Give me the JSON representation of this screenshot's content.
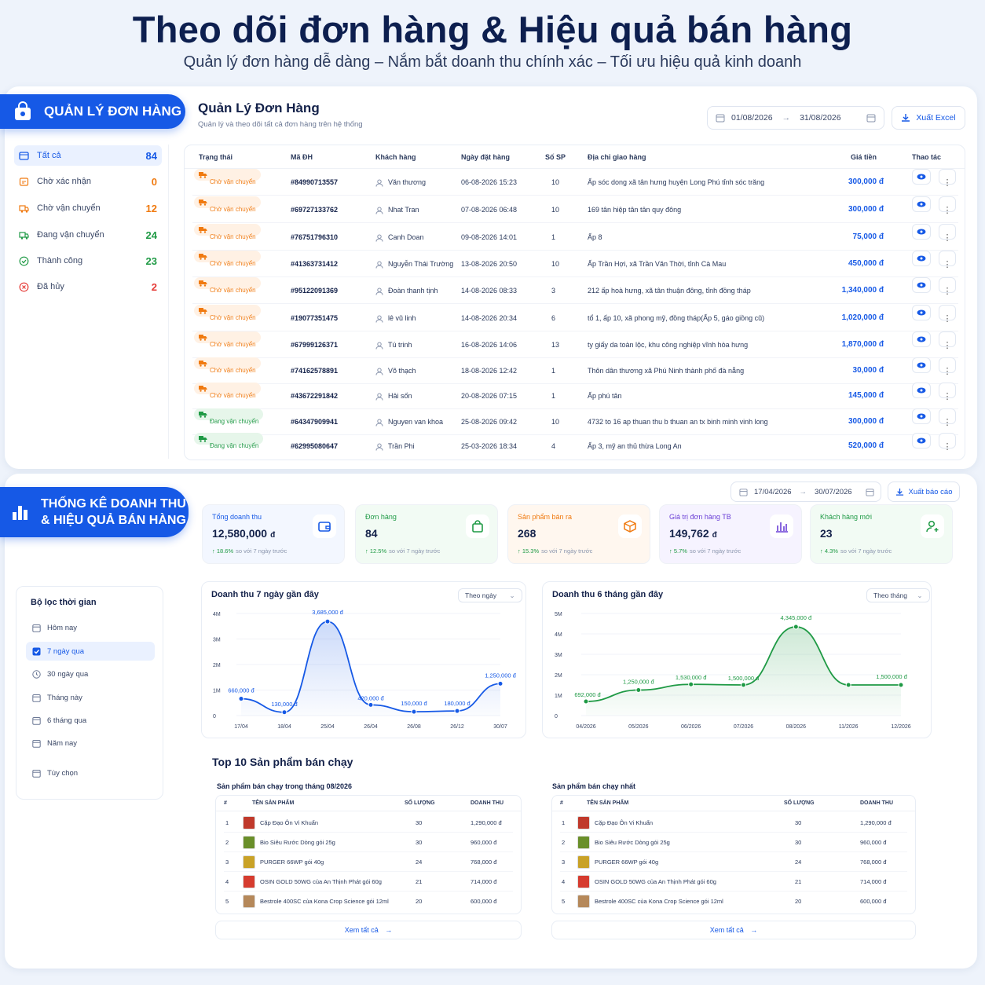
{
  "hero": {
    "title": "Theo dõi đơn hàng & Hiệu quả bán hàng",
    "subtitle": "Quản lý đơn hàng dễ dàng – Nắm bắt doanh thu chính xác – Tối ưu hiệu quả kinh doanh"
  },
  "orders": {
    "ribbon": "QUẢN LÝ ĐƠN HÀNG",
    "title": "Quản Lý Đơn Hàng",
    "subtitle": "Quản lý và theo dõi tất cả đơn hàng trên hệ thống",
    "date_from": "01/08/2026",
    "date_to": "31/08/2026",
    "export_label": "Xuất Excel",
    "nav": [
      {
        "label": "Tất cả",
        "count": "84",
        "color": "#1659e6",
        "icon": "list-icon"
      },
      {
        "label": "Chờ xác nhận",
        "count": "0",
        "color": "#f07a10",
        "icon": "pending-icon"
      },
      {
        "label": "Chờ vận chuyển",
        "count": "12",
        "color": "#f07a10",
        "icon": "truck-icon"
      },
      {
        "label": "Đang vận chuyển",
        "count": "24",
        "color": "#1f9a45",
        "icon": "truck-icon"
      },
      {
        "label": "Thành công",
        "count": "23",
        "color": "#1f9a45",
        "icon": "check-icon"
      },
      {
        "label": "Đã hủy",
        "count": "2",
        "color": "#e53935",
        "icon": "cancel-icon"
      }
    ],
    "columns": [
      "Trạng thái",
      "Mã ĐH",
      "Khách hàng",
      "Ngày đặt hàng",
      "Số SP",
      "Địa chỉ giao hàng",
      "Giá tiền",
      "Thao tác"
    ],
    "rows": [
      {
        "status": "Chờ vận chuyển",
        "kind": "o",
        "id": "#84990713557",
        "customer": "Văn thương",
        "date": "06-08-2026 15:23",
        "qty": "10",
        "address": "Ấp sóc dong xã tân hưng huyện Long Phú tỉnh sóc trăng",
        "price": "300,000 đ"
      },
      {
        "status": "Chờ vận chuyển",
        "kind": "o",
        "id": "#69727133762",
        "customer": "Nhat Tran",
        "date": "07-08-2026 06:48",
        "qty": "10",
        "address": "169 tân hiệp tân tân quy đông",
        "price": "300,000 đ"
      },
      {
        "status": "Chờ vận chuyển",
        "kind": "o",
        "id": "#76751796310",
        "customer": "Canh Doan",
        "date": "09-08-2026 14:01",
        "qty": "1",
        "address": "Ấp 8",
        "price": "75,000 đ"
      },
      {
        "status": "Chờ vận chuyển",
        "kind": "o",
        "id": "#41363731412",
        "customer": "Nguyễn Thái Trường",
        "date": "13-08-2026 20:50",
        "qty": "10",
        "address": "Ấp Trần Hợi, xã Trần Văn Thời, tỉnh Cà Mau",
        "price": "450,000 đ"
      },
      {
        "status": "Chờ vận chuyển",
        "kind": "o",
        "id": "#95122091369",
        "customer": "Đoàn thanh tịnh",
        "date": "14-08-2026 08:33",
        "qty": "3",
        "address": "212 ấp hoà hưng, xã tân thuận đông, tỉnh đồng tháp",
        "price": "1,340,000 đ"
      },
      {
        "status": "Chờ vận chuyển",
        "kind": "o",
        "id": "#19077351475",
        "customer": "lê vũ linh",
        "date": "14-08-2026 20:34",
        "qty": "6",
        "address": "tổ 1, ấp 10, xã phong mỹ, đồng tháp(Ấp 5, gáo giồng cũ)",
        "price": "1,020,000 đ"
      },
      {
        "status": "Chờ vận chuyển",
        "kind": "o",
        "id": "#67999126371",
        "customer": "Tú trinh",
        "date": "16-08-2026 14:06",
        "qty": "13",
        "address": "ty giấy da toàn lộc, khu công nghiệp vĩnh hòa hưng",
        "price": "1,870,000 đ"
      },
      {
        "status": "Chờ vận chuyển",
        "kind": "o",
        "id": "#74162578891",
        "customer": "Võ thạch",
        "date": "18-08-2026 12:42",
        "qty": "1",
        "address": "Thôn dân thương xã Phú Ninh thành phố đà nẵng",
        "price": "30,000 đ"
      },
      {
        "status": "Chờ vận chuyển",
        "kind": "o",
        "id": "#43672291842",
        "customer": "Hải sốn",
        "date": "20-08-2026 07:15",
        "qty": "1",
        "address": "Ấp phú tân",
        "price": "145,000 đ"
      },
      {
        "status": "Đang vận chuyển",
        "kind": "g",
        "id": "#64347909941",
        "customer": "Nguyen van khoa",
        "date": "25-08-2026 09:42",
        "qty": "10",
        "address": "4732 to 16 ap thuan thu b thuan an tx binh minh vinh long",
        "price": "300,000 đ"
      },
      {
        "status": "Đang vận chuyển",
        "kind": "g",
        "id": "#62995080647",
        "customer": "Trần Phi",
        "date": "25-03-2026 18:34",
        "qty": "4",
        "address": "Ấp 3, mỹ an thủ thừa Long An",
        "price": "520,000 đ"
      }
    ]
  },
  "stats": {
    "ribbon_line1": "THỐNG KÊ DOANH THU",
    "ribbon_line2": "& HIỆU QUẢ BÁN HÀNG",
    "date_from": "17/04/2026",
    "date_to": "30/07/2026",
    "export_label": "Xuất báo cáo",
    "kpis": [
      {
        "label": "Tổng doanh thu",
        "value": "12,580,000",
        "unit": "đ",
        "change": "18.6%",
        "note": "so với 7 ngày trước",
        "color": "#1659e6",
        "bg": "#f3f7ff",
        "icon": "wallet-icon"
      },
      {
        "label": "Đơn hàng",
        "value": "84",
        "unit": "",
        "change": "12.5%",
        "note": "so với 7 ngày trước",
        "color": "#1f9a45",
        "bg": "#f2fbf4",
        "icon": "bag-icon"
      },
      {
        "label": "Sản phẩm bán ra",
        "value": "268",
        "unit": "",
        "change": "15.3%",
        "note": "so với 7 ngày trước",
        "color": "#f07a10",
        "bg": "#fff7ef",
        "icon": "box-icon"
      },
      {
        "label": "Giá trị đơn hàng TB",
        "value": "149,762",
        "unit": "đ",
        "change": "5.7%",
        "note": "so với 7 ngày trước",
        "color": "#6a3fd6",
        "bg": "#f6f3ff",
        "icon": "bar-icon"
      },
      {
        "label": "Khách hàng mới",
        "value": "23",
        "unit": "",
        "change": "4.3%",
        "note": "so với 7 ngày trước",
        "color": "#1f9a45",
        "bg": "#f2fbf4",
        "icon": "user-plus-icon"
      }
    ],
    "filter_title": "Bộ lọc thời gian",
    "filters": [
      "Hôm nay",
      "7 ngày qua",
      "30 ngày qua",
      "Tháng này",
      "6 tháng qua",
      "Năm nay",
      "Tùy chọn"
    ],
    "chart1_select": "Theo ngày",
    "chart2_select": "Theo tháng",
    "top_title": "Top 10 Sản phẩm bán chạy",
    "table1_title": "Sản phẩm bán chạy trong tháng 08/2026",
    "table2_title": "Sản phẩm bán chạy nhất",
    "columns": [
      "#",
      "TÊN SẢN PHẨM",
      "SỐ LƯỢNG",
      "DOANH THU"
    ],
    "products": [
      {
        "rank": "1",
        "name": "Cặp Đạo Ôn Vi Khuẩn",
        "qty": "30",
        "revenue": "1,290,000 đ",
        "color": "#c0392b"
      },
      {
        "rank": "2",
        "name": "Bio Siêu Rước Dòng gói 25g",
        "qty": "30",
        "revenue": "960,000 đ",
        "color": "#6a8f2a"
      },
      {
        "rank": "3",
        "name": "PURGER 66WP gói 40g",
        "qty": "24",
        "revenue": "768,000 đ",
        "color": "#c9a227"
      },
      {
        "rank": "4",
        "name": "OSIN GOLD 50WG của An Thịnh Phát gói 60g",
        "qty": "21",
        "revenue": "714,000 đ",
        "color": "#d63c2f"
      },
      {
        "rank": "5",
        "name": "Bestrole 400SC của Kona Crop Science gói 12ml",
        "qty": "20",
        "revenue": "600,000 đ",
        "color": "#b5885a"
      }
    ],
    "see_all": "Xem tất cả"
  },
  "chart_data": [
    {
      "type": "line",
      "title": "Doanh thu 7 ngày gần đây",
      "x": [
        "17/04",
        "18/04",
        "25/04",
        "26/04",
        "26/08",
        "26/12",
        "30/07"
      ],
      "values": [
        660000,
        130000,
        3685000,
        420000,
        150000,
        180000,
        1250000
      ],
      "labels": [
        "660,000 đ",
        "130,000 đ",
        "3,685,000 đ",
        "420,000 đ",
        "150,000 đ",
        "180,000 đ",
        "1,250,000 đ"
      ],
      "yticks": [
        "0",
        "1M",
        "2M",
        "3M",
        "4M"
      ],
      "ylim": [
        0,
        4000000
      ],
      "color": "#1659e6"
    },
    {
      "type": "area",
      "title": "Doanh thu 6 tháng gần đây",
      "x": [
        "04/2026",
        "05/2026",
        "06/2026",
        "07/2026",
        "08/2026",
        "11/2026",
        "12/2026"
      ],
      "values": [
        692000,
        1250000,
        1530000,
        1500000,
        4345000,
        1500000,
        1500000
      ],
      "labels": [
        "692,000 đ",
        "1,250,000 đ",
        "1,530,000 đ",
        "1,500,000 đ",
        "4,345,000 đ",
        "",
        "1,500,000 đ"
      ],
      "yticks": [
        "0",
        "1M",
        "2M",
        "3M",
        "4M",
        "5M"
      ],
      "ylim": [
        0,
        5000000
      ],
      "color": "#1f9a45"
    }
  ]
}
